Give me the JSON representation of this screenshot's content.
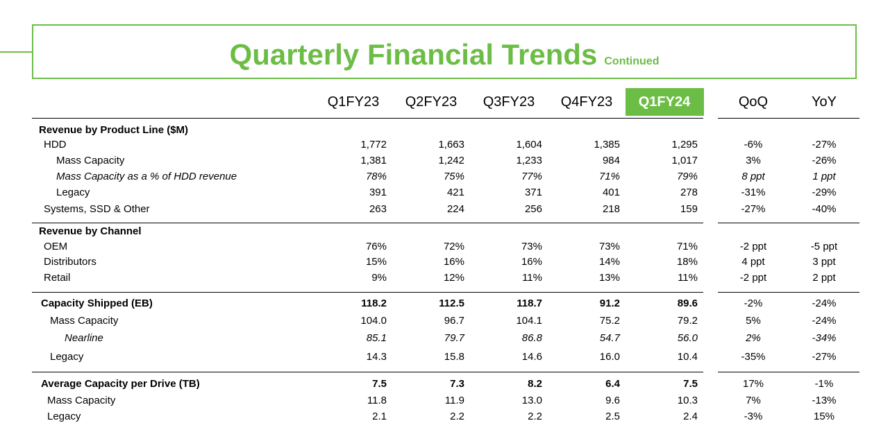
{
  "title": {
    "main": "Quarterly Financial Trends",
    "sub": "Continued"
  },
  "columns": [
    "Q1FY23",
    "Q2FY23",
    "Q3FY23",
    "Q4FY23",
    "Q1FY24"
  ],
  "change_columns": [
    "QoQ",
    "YoY"
  ],
  "highlight_color": "#6cbd45",
  "sections": [
    {
      "rows": [
        {
          "label": "Revenue by Product Line ($M)",
          "values": [],
          "qoq": "",
          "yoy": ""
        },
        {
          "label": "HDD",
          "values": [
            "1,772",
            "1,663",
            "1,604",
            "1,385",
            "1,295"
          ],
          "qoq": "-6%",
          "yoy": "-27%"
        },
        {
          "label": "Mass Capacity",
          "values": [
            "1,381",
            "1,242",
            "1,233",
            "984",
            "1,017"
          ],
          "qoq": "3%",
          "yoy": "-26%"
        },
        {
          "label": "Mass Capacity as a % of HDD revenue",
          "values": [
            "78%",
            "75%",
            "77%",
            "71%",
            "79%"
          ],
          "qoq": "8 ppt",
          "yoy": "1 ppt"
        },
        {
          "label": "Legacy",
          "values": [
            "391",
            "421",
            "371",
            "401",
            "278"
          ],
          "qoq": "-31%",
          "yoy": "-29%"
        },
        {
          "label": "Systems, SSD & Other",
          "values": [
            "263",
            "224",
            "256",
            "218",
            "159"
          ],
          "qoq": "-27%",
          "yoy": "-40%"
        }
      ]
    },
    {
      "rows": [
        {
          "label": "Revenue by Channel",
          "values": [],
          "qoq": "",
          "yoy": ""
        },
        {
          "label": "OEM",
          "values": [
            "76%",
            "72%",
            "73%",
            "73%",
            "71%"
          ],
          "qoq": "-2 ppt",
          "yoy": "-5 ppt"
        },
        {
          "label": "Distributors",
          "values": [
            "15%",
            "16%",
            "16%",
            "14%",
            "18%"
          ],
          "qoq": "4 ppt",
          "yoy": "3 ppt"
        },
        {
          "label": "Retail",
          "values": [
            "9%",
            "12%",
            "11%",
            "13%",
            "11%"
          ],
          "qoq": "-2 ppt",
          "yoy": "2 ppt"
        }
      ]
    },
    {
      "rows": [
        {
          "label": "Capacity Shipped (EB)",
          "values": [
            "118.2",
            "112.5",
            "118.7",
            "91.2",
            "89.6"
          ],
          "qoq": "-2%",
          "yoy": "-24%"
        },
        {
          "label": "Mass Capacity",
          "values": [
            "104.0",
            "96.7",
            "104.1",
            "75.2",
            "79.2"
          ],
          "qoq": "5%",
          "yoy": "-24%"
        },
        {
          "label": "Nearline",
          "values": [
            "85.1",
            "79.7",
            "86.8",
            "54.7",
            "56.0"
          ],
          "qoq": "2%",
          "yoy": "-34%"
        },
        {
          "label": "Legacy",
          "values": [
            "14.3",
            "15.8",
            "14.6",
            "16.0",
            "10.4"
          ],
          "qoq": "-35%",
          "yoy": "-27%"
        }
      ]
    },
    {
      "rows": [
        {
          "label": "Average Capacity per Drive (TB)",
          "values": [
            "7.5",
            "7.3",
            "8.2",
            "6.4",
            "7.5"
          ],
          "qoq": "17%",
          "yoy": "-1%"
        },
        {
          "label": "Mass Capacity",
          "values": [
            "11.8",
            "11.9",
            "13.0",
            "9.6",
            "10.3"
          ],
          "qoq": "7%",
          "yoy": "-13%"
        },
        {
          "label": "Legacy",
          "values": [
            "2.1",
            "2.2",
            "2.2",
            "2.5",
            "2.4"
          ],
          "qoq": "-3%",
          "yoy": "15%"
        }
      ]
    }
  ]
}
